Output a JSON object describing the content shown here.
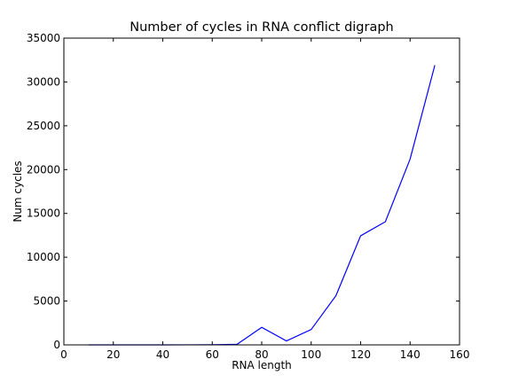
{
  "chart_data": {
    "type": "line",
    "title": "Number of cycles in RNA conflict digraph",
    "xlabel": "RNA length",
    "ylabel": "Num cycles",
    "xlim": [
      0,
      160
    ],
    "ylim": [
      0,
      35000
    ],
    "xticks": [
      0,
      20,
      40,
      60,
      80,
      100,
      120,
      140,
      160
    ],
    "xtick_labels": [
      "0",
      "20",
      "40",
      "60",
      "80",
      "100",
      "120",
      "140",
      "160"
    ],
    "yticks": [
      0,
      5000,
      10000,
      15000,
      20000,
      25000,
      30000,
      35000
    ],
    "ytick_labels": [
      "0",
      "5000",
      "10000",
      "15000",
      "20000",
      "25000",
      "30000",
      "35000"
    ],
    "grid": false,
    "series": [
      {
        "color": "#0000ff",
        "x": [
          10,
          20,
          30,
          40,
          50,
          60,
          70,
          80,
          90,
          100,
          110,
          120,
          130,
          140,
          150
        ],
        "y": [
          0,
          0,
          0,
          0,
          5,
          15,
          60,
          2000,
          450,
          1750,
          5600,
          12450,
          14050,
          21200,
          31900
        ]
      }
    ]
  }
}
